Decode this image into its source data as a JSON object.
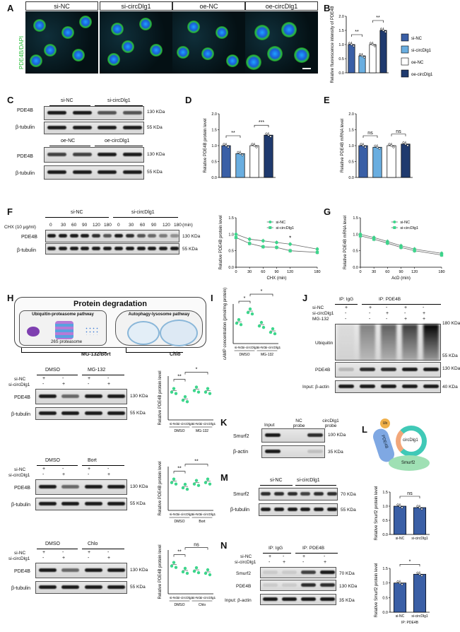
{
  "panels": {
    "A": {
      "letter": "A",
      "headers": [
        "si-NC",
        "si-circDlg1",
        "oe-NC",
        "oe-circDlg1"
      ],
      "ylabel": "PDE4B/DAPI"
    },
    "B": {
      "letter": "B",
      "ylabel": "Relative fluorescence intensity of PDE4B",
      "sig": [
        "**",
        "**"
      ],
      "legend": [
        "si-NC",
        "si-circDlg1",
        "oe-NC",
        "oe-circDlg1"
      ],
      "yticks": [
        "0.0",
        "0.5",
        "1.0",
        "1.5",
        "2.0"
      ]
    },
    "C": {
      "letter": "C",
      "rows1": [
        "PDE4B",
        "β-tubulin"
      ],
      "heads1": [
        "si-NC",
        "si-circDlg1"
      ],
      "rows2": [
        "PDE4B",
        "β-tubulin"
      ],
      "heads2": [
        "oe-NC",
        "oe-circDlg1"
      ],
      "mw": [
        "130 KDa",
        "55 KDa",
        "130 KDa",
        "55 KDa"
      ]
    },
    "D": {
      "letter": "D",
      "ylabel": "Relative PDE4B protein level",
      "sig": [
        "**",
        "***"
      ],
      "yticks": [
        "0.0",
        "0.5",
        "1.0",
        "1.5",
        "2.0"
      ]
    },
    "E": {
      "letter": "E",
      "ylabel": "Relative PDE4B mRNA level",
      "sig": [
        "ns",
        "ns"
      ],
      "yticks": [
        "0.0",
        "0.5",
        "1.0",
        "1.5",
        "2.0"
      ]
    },
    "F": {
      "letter": "F",
      "treatment": "CHX (10 μg/ml)",
      "groups": [
        "si-NC",
        "si-circDlg1"
      ],
      "times": [
        "0",
        "30",
        "60",
        "90",
        "120",
        "180"
      ],
      "unit": "(min)",
      "rows": [
        "PDE4B",
        "β-tubulin"
      ],
      "mw": [
        "130 KDa",
        "55 KDa"
      ],
      "ylabel": "Relative PDE4B protein level",
      "xlabel": "CHX (min)",
      "legend": [
        "si-NC",
        "si-circDlg1"
      ],
      "yticks": [
        "0.0",
        "0.5",
        "1.0",
        "1.5"
      ],
      "xticks": [
        "0",
        "30",
        "60",
        "90",
        "120",
        "180"
      ],
      "sig": "*"
    },
    "G": {
      "letter": "G",
      "ylabel": "Relative PDE4B mRNA level",
      "xlabel": "AcD (min)",
      "legend": [
        "si-NC",
        "si-circDlg1"
      ],
      "yticks": [
        "0.0",
        "0.5",
        "1.0",
        "1.5"
      ],
      "xticks": [
        "0",
        "30",
        "60",
        "90",
        "120",
        "180"
      ]
    },
    "H": {
      "letter": "H",
      "title": "Protein degradation",
      "left": "Ubiquitin-proteasome pathway",
      "right": "Autophagy-lysosome pathway",
      "proteasome": "26S proteasome",
      "inh1": "MG-132/Bort",
      "inh2": "Chlo",
      "blots": [
        {
          "treat": [
            "DMSO",
            "MG-132"
          ],
          "rows": [
            "PDE4B",
            "β-tubulin"
          ],
          "mw": [
            "130 KDa",
            "55 KDa"
          ],
          "groups": [
            "si-NC",
            "si-circDlg1"
          ],
          "signs": [
            [
              "+",
              "-",
              "+",
              "-"
            ],
            [
              "-",
              "+",
              "-",
              "+"
            ]
          ],
          "sig": [
            "**",
            "*"
          ],
          "xl": [
            "si-NC",
            "si-circDlg1",
            "si-NC",
            "si-circDlg1"
          ],
          "xg": [
            "DMSO",
            "MG-132"
          ],
          "ylabel": "Relative PDE4B protein level"
        },
        {
          "treat": [
            "DMSO",
            "Bort"
          ],
          "rows": [
            "PDE4B",
            "β-tubulin"
          ],
          "mw": [
            "130 KDa",
            "55 KDa"
          ],
          "groups": [
            "si-NC",
            "si-circDlg1"
          ],
          "signs": [
            [
              "+",
              "-",
              "+",
              "-"
            ],
            [
              "-",
              "+",
              "-",
              "+"
            ]
          ],
          "sig": [
            "**",
            "**"
          ],
          "xl": [
            "si-NC",
            "si-circDlg1",
            "si-NC",
            "si-circDlg1"
          ],
          "xg": [
            "DMSO",
            "Bort"
          ],
          "ylabel": "Relative PDE4B protein level"
        },
        {
          "treat": [
            "DMSO",
            "Chlo"
          ],
          "rows": [
            "PDE4B",
            "β-tubulin"
          ],
          "mw": [
            "130 KDa",
            "55 KDa"
          ],
          "groups": [
            "si-NC",
            "si-circDlg1"
          ],
          "signs": [
            [
              "+",
              "-",
              "+",
              "-"
            ],
            [
              "-",
              "+",
              "-",
              "+"
            ]
          ],
          "sig": [
            "**",
            "ns"
          ],
          "xl": [
            "si-NC",
            "si-circDlg1",
            "si-NC",
            "si-circDlg1"
          ],
          "xg": [
            "DMSO",
            "Chlo"
          ],
          "ylabel": "Relative PDE4B protein level"
        }
      ]
    },
    "I": {
      "letter": "I",
      "ylabel": "cAMP concentration (pmol/mg protein)",
      "sig": [
        "*",
        "*"
      ],
      "xl": [
        "si-NC",
        "si-circDlg1",
        "si-NC",
        "si-circDlg1"
      ],
      "xg": [
        "DMSO",
        "MG-132"
      ]
    },
    "J": {
      "letter": "J",
      "ipa": "IP: IgG",
      "ipb": "IP: PDE4B",
      "rows": [
        "si-NC",
        "si-circDlg1",
        "MG-132"
      ],
      "signs": [
        [
          "+",
          "+",
          "-",
          "+",
          "-"
        ],
        [
          "-",
          "-",
          "+",
          "-",
          "+"
        ],
        [
          "-",
          "-",
          "-",
          "+",
          "+"
        ]
      ],
      "lane_labels": [
        "Ubiquitin",
        "PDE4B",
        "Input: β-actin"
      ],
      "mw": [
        "180 KDa",
        "55 KDa",
        "130 KDa",
        "40 KDa"
      ]
    },
    "K": {
      "letter": "K",
      "heads": [
        "Input",
        "NC probe",
        "circDlg1 probe"
      ],
      "rows": [
        "Smurf2",
        "β-actin"
      ],
      "mw": [
        "100 KDa",
        "35 KDa"
      ]
    },
    "L": {
      "letter": "L",
      "labels": [
        "Ub",
        "PDE4B",
        "circDlg1",
        "Smurf2"
      ],
      "plot1": {
        "ylabel": "Relative Smurf2 protein level",
        "sig": "ns",
        "xl": [
          "si-NC",
          "si-circDlg1"
        ]
      },
      "plot2": {
        "ylabel": "Relative Smurf2 protein level",
        "sig": "*",
        "xl": [
          "si-NC",
          "si-circDlg1"
        ],
        "xg": "IP: PDE4B"
      }
    },
    "M": {
      "letter": "M",
      "heads": [
        "si-NC",
        "si-circDlg1"
      ],
      "rows": [
        "Smurf2",
        "β-tubulin"
      ],
      "mw": [
        "70 KDa",
        "55 KDa"
      ]
    },
    "N": {
      "letter": "N",
      "ipa": "IP: IgG",
      "ipb": "IP: PDE4B",
      "rows": [
        "si-NC",
        "si-circDlg1"
      ],
      "signs": [
        [
          "+",
          "-",
          "+",
          "-"
        ],
        [
          "-",
          "+",
          "-",
          "+"
        ]
      ],
      "lanes": [
        "Smurf2",
        "PDE4B",
        "Input: β-actin"
      ],
      "mw": [
        "70 KDa",
        "130 KDa",
        "35 KDa"
      ]
    }
  },
  "colors": {
    "sinc": "#3a5fa6",
    "sicirc": "#6aaee0",
    "oenc": "#ffffff",
    "oecirc": "#1f3a6e",
    "green": "#3dd68c",
    "gray": "#9aa0a6"
  },
  "chart_data": [
    {
      "type": "bar",
      "panel": "B",
      "categories": [
        "si-NC",
        "si-circDlg1",
        "oe-NC",
        "oe-circDlg1"
      ],
      "values": [
        1.0,
        0.6,
        1.0,
        1.5
      ],
      "ylim": [
        0,
        2
      ]
    },
    {
      "type": "bar",
      "panel": "D",
      "categories": [
        "si-NC",
        "si-circDlg1",
        "oe-NC",
        "oe-circDlg1"
      ],
      "values": [
        1.0,
        0.75,
        1.0,
        1.33
      ],
      "ylim": [
        0,
        2
      ]
    },
    {
      "type": "bar",
      "panel": "E",
      "categories": [
        "si-NC",
        "si-circDlg1",
        "oe-NC",
        "oe-circDlg1"
      ],
      "values": [
        1.0,
        0.95,
        1.0,
        1.05
      ],
      "ylim": [
        0,
        2
      ]
    },
    {
      "type": "line",
      "panel": "F",
      "x": [
        0,
        30,
        60,
        90,
        120,
        180
      ],
      "series": [
        {
          "name": "si-NC",
          "values": [
            1.0,
            0.85,
            0.8,
            0.75,
            0.7,
            0.55
          ]
        },
        {
          "name": "si-circDlg1",
          "values": [
            0.9,
            0.72,
            0.62,
            0.6,
            0.5,
            0.45
          ]
        }
      ],
      "ylim": [
        0,
        1.5
      ]
    },
    {
      "type": "line",
      "panel": "G",
      "x": [
        0,
        30,
        60,
        90,
        120,
        180
      ],
      "series": [
        {
          "name": "si-NC",
          "values": [
            1.0,
            0.9,
            0.78,
            0.65,
            0.55,
            0.42
          ]
        },
        {
          "name": "si-circDlg1",
          "values": [
            0.95,
            0.85,
            0.73,
            0.6,
            0.5,
            0.37
          ]
        }
      ],
      "ylim": [
        0,
        1.5
      ]
    },
    {
      "type": "scatter",
      "panel": "H-MG132",
      "values": [
        1.0,
        0.72,
        1.05,
        1.0
      ],
      "ylim": [
        0,
        1.5
      ]
    },
    {
      "type": "scatter",
      "panel": "H-Bort",
      "values": [
        1.0,
        0.82,
        0.95,
        1.0
      ],
      "ylim": [
        0,
        1.5
      ]
    },
    {
      "type": "scatter",
      "panel": "H-Chlo",
      "values": [
        1.0,
        0.8,
        0.82,
        0.75
      ],
      "ylim": [
        0,
        1.5
      ]
    },
    {
      "type": "scatter",
      "panel": "I",
      "values": [
        5.5,
        8.2,
        4.8,
        3.2
      ],
      "ylim": [
        0,
        10
      ]
    },
    {
      "type": "bar",
      "panel": "L1",
      "categories": [
        "si-NC",
        "si-circDlg1"
      ],
      "values": [
        1.0,
        0.95
      ],
      "ylim": [
        0,
        1.5
      ]
    },
    {
      "type": "bar",
      "panel": "L2",
      "categories": [
        "si-NC",
        "si-circDlg1"
      ],
      "values": [
        1.0,
        1.3
      ],
      "ylim": [
        0,
        1.5
      ]
    }
  ]
}
